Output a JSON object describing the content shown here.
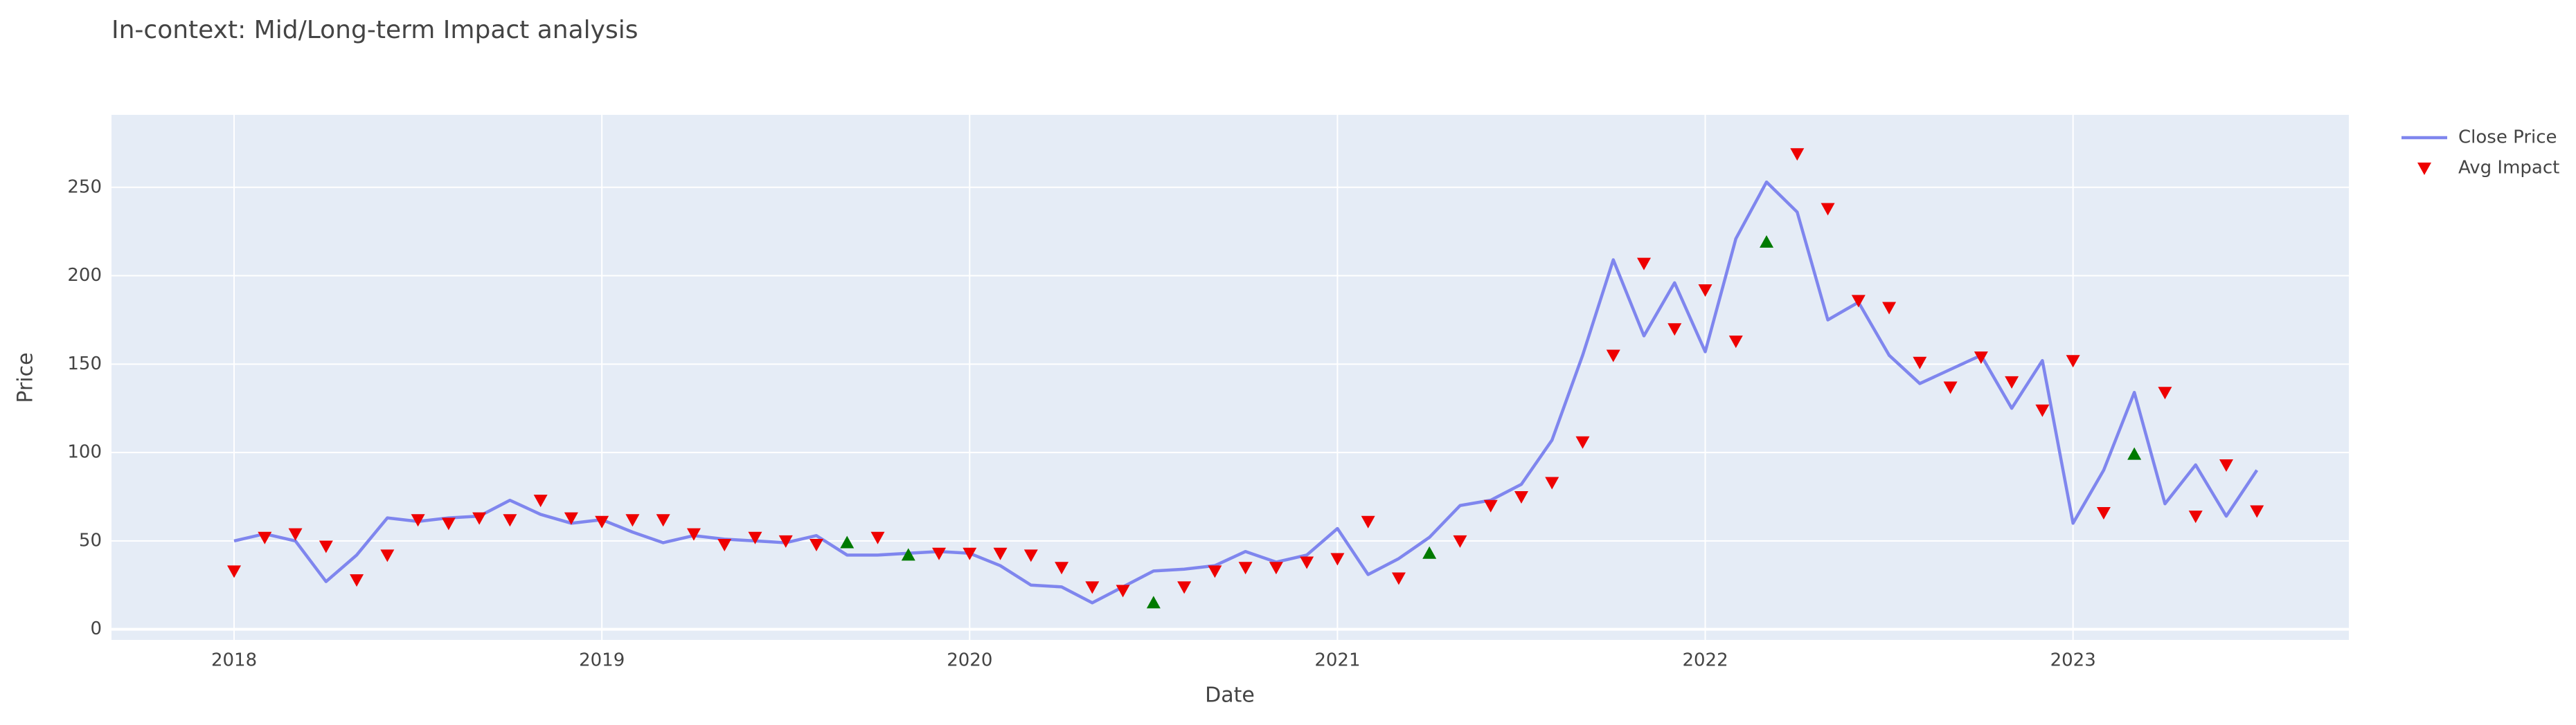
{
  "chart_data": {
    "type": "line",
    "title": "In-context: Mid/Long-term Impact analysis",
    "x_label": "Date",
    "y_label": "Price",
    "x": [
      "2018-01",
      "2018-02",
      "2018-03",
      "2018-04",
      "2018-05",
      "2018-06",
      "2018-07",
      "2018-08",
      "2018-09",
      "2018-10",
      "2018-11",
      "2018-12",
      "2019-01",
      "2019-02",
      "2019-03",
      "2019-04",
      "2019-05",
      "2019-06",
      "2019-07",
      "2019-08",
      "2019-09",
      "2019-10",
      "2019-11",
      "2019-12",
      "2020-01",
      "2020-02",
      "2020-03",
      "2020-04",
      "2020-05",
      "2020-06",
      "2020-07",
      "2020-08",
      "2020-09",
      "2020-10",
      "2020-11",
      "2020-12",
      "2021-01",
      "2021-02",
      "2021-03",
      "2021-04",
      "2021-05",
      "2021-06",
      "2021-07",
      "2021-08",
      "2021-09",
      "2021-10",
      "2021-11",
      "2021-12",
      "2022-01",
      "2022-02",
      "2022-03",
      "2022-04",
      "2022-05",
      "2022-06",
      "2022-07",
      "2022-08",
      "2022-09",
      "2022-10",
      "2022-11",
      "2022-12",
      "2023-01",
      "2023-02",
      "2023-03",
      "2023-04",
      "2023-05",
      "2023-06",
      "2023-07"
    ],
    "xlim": [
      "2017-09",
      "2023-10"
    ],
    "xticks": [
      "2018",
      "2019",
      "2020",
      "2021",
      "2022",
      "2023"
    ],
    "ylim": [
      -6,
      291
    ],
    "yticks": [
      0,
      50,
      100,
      150,
      200,
      250
    ],
    "grid": true,
    "legend": "outside-right",
    "series": [
      {
        "name": "Close Price",
        "type": "line",
        "color": "#7f86ee",
        "values": [
          50,
          54,
          50,
          27,
          42,
          63,
          61,
          63,
          64,
          73,
          65,
          60,
          62,
          55,
          49,
          53,
          51,
          50,
          49,
          53,
          42,
          42,
          43,
          44,
          43,
          36,
          25,
          24,
          15,
          24,
          33,
          34,
          36,
          44,
          38,
          42,
          57,
          31,
          40,
          52,
          70,
          73,
          82,
          107,
          155,
          209,
          166,
          196,
          157,
          221,
          253,
          236,
          175,
          185,
          155,
          139,
          147,
          155,
          125,
          152,
          60,
          90,
          134,
          71,
          93,
          64,
          90
        ]
      },
      {
        "name": "Avg Impact",
        "type": "scatter",
        "color": "#ee0000",
        "symbol_colors": {
          "down": "#ee0000",
          "up": "#007a00"
        },
        "symbols": [
          "down",
          "down",
          "down",
          "down",
          "down",
          "down",
          "down",
          "down",
          "down",
          "down",
          "down",
          "down",
          "down",
          "down",
          "down",
          "down",
          "down",
          "down",
          "down",
          "down",
          "up",
          "down",
          "up",
          "down",
          "down",
          "down",
          "down",
          "down",
          "down",
          "down",
          "up",
          "down",
          "down",
          "down",
          "down",
          "down",
          "down",
          "down",
          "down",
          "up",
          "down",
          "down",
          "down",
          "down",
          "down",
          "down",
          "down",
          "down",
          "down",
          "down",
          "up",
          "down",
          "down",
          "down",
          "down",
          "down",
          "down",
          "down",
          "down",
          "down",
          "down",
          "down",
          "up",
          "down",
          "down",
          "down",
          "down"
        ],
        "values": [
          33,
          52,
          54,
          47,
          28,
          42,
          62,
          60,
          63,
          62,
          73,
          63,
          61,
          62,
          62,
          54,
          48,
          52,
          50,
          48,
          49,
          52,
          42,
          43,
          43,
          43,
          42,
          35,
          24,
          22,
          15,
          24,
          33,
          35,
          35,
          38,
          40,
          61,
          29,
          43,
          50,
          70,
          75,
          83,
          106,
          155,
          207,
          170,
          192,
          163,
          219,
          269,
          238,
          186,
          182,
          151,
          137,
          154,
          140,
          124,
          152,
          66,
          99,
          134,
          64,
          93,
          67
        ]
      }
    ]
  }
}
